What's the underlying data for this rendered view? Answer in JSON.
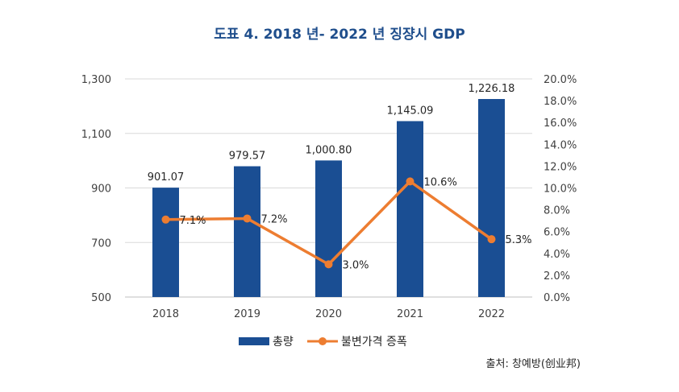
{
  "chart_data": {
    "type": "bar+line",
    "title": "도표 4. 2018 년- 2022 년  징쟝시  GDP",
    "categories": [
      "2018",
      "2019",
      "2020",
      "2021",
      "2022"
    ],
    "series": [
      {
        "name": "총량",
        "type": "bar",
        "axis": "left",
        "values": [
          901.07,
          979.57,
          1000.8,
          1145.09,
          1226.18
        ],
        "labels": [
          "901.07",
          "979.57",
          "1,000.80",
          "1,145.09",
          "1,226.18"
        ],
        "color": "#1a4e93"
      },
      {
        "name": "불변가격 증폭",
        "type": "line",
        "axis": "right",
        "values": [
          7.1,
          7.2,
          3.0,
          10.6,
          5.3
        ],
        "labels": [
          "7.1%",
          "7.2%",
          "3.0%",
          "10.6%",
          "5.3%"
        ],
        "color": "#ed7d31"
      }
    ],
    "left_axis": {
      "ylim": [
        500,
        1300
      ],
      "ticks": [
        500,
        700,
        900,
        1100,
        1300
      ],
      "tick_labels": [
        "500",
        "700",
        "900",
        "1,100",
        "1,300"
      ]
    },
    "right_axis": {
      "ylim": [
        0,
        20
      ],
      "ticks": [
        0,
        2,
        4,
        6,
        8,
        10,
        12,
        14,
        16,
        18,
        20
      ],
      "tick_labels": [
        "0.0%",
        "2.0%",
        "4.0%",
        "6.0%",
        "8.0%",
        "10.0%",
        "12.0%",
        "14.0%",
        "16.0%",
        "18.0%",
        "20.0%"
      ]
    },
    "grid": true,
    "legend": "bottom-center",
    "source": "출처: 창예방(创业邦)"
  }
}
